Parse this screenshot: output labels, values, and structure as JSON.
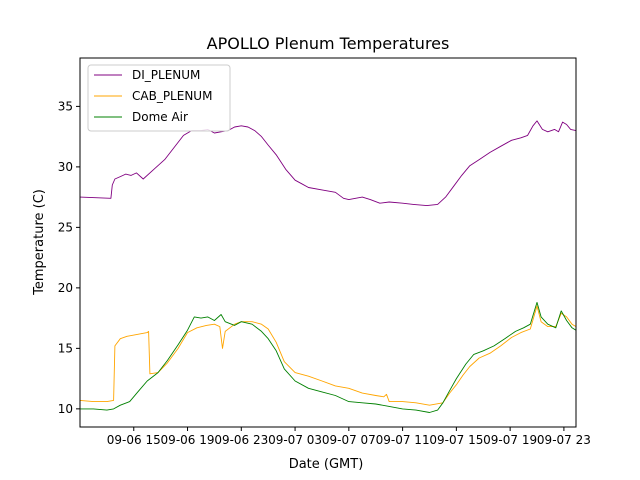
{
  "chart_data": {
    "type": "line",
    "title": "APOLLO Plenum Temperatures",
    "xlabel": "Date (GMT)",
    "ylabel": "Temperature (C)",
    "xlim": [
      11.0,
      47.9
    ],
    "ylim": [
      8.5,
      39.0
    ],
    "x_unit": "hours since 09-06 00:00 GMT",
    "x_ticks": [
      {
        "value": 15,
        "label": "09-06 15"
      },
      {
        "value": 19,
        "label": "09-06 19"
      },
      {
        "value": 23,
        "label": "09-06 23"
      },
      {
        "value": 27,
        "label": "09-07 03"
      },
      {
        "value": 31,
        "label": "09-07 07"
      },
      {
        "value": 35,
        "label": "09-07 11"
      },
      {
        "value": 39,
        "label": "09-07 15"
      },
      {
        "value": 43,
        "label": "09-07 19"
      },
      {
        "value": 47,
        "label": "09-07 23"
      }
    ],
    "y_ticks": [
      10,
      15,
      20,
      25,
      30,
      35
    ],
    "legend_position": "top-left",
    "series": [
      {
        "name": "DI_PLENUM",
        "color": "#800080",
        "points": [
          [
            11.0,
            27.5
          ],
          [
            13.3,
            27.4
          ],
          [
            13.4,
            28.5
          ],
          [
            13.6,
            29.0
          ],
          [
            14.0,
            29.2
          ],
          [
            14.4,
            29.4
          ],
          [
            14.8,
            29.3
          ],
          [
            15.2,
            29.5
          ],
          [
            15.7,
            29.0
          ],
          [
            16.5,
            29.8
          ],
          [
            17.3,
            30.6
          ],
          [
            18.0,
            31.6
          ],
          [
            18.7,
            32.6
          ],
          [
            19.3,
            33.0
          ],
          [
            20.0,
            33.0
          ],
          [
            20.5,
            33.1
          ],
          [
            21.0,
            32.8
          ],
          [
            21.5,
            32.9
          ],
          [
            22.0,
            33.0
          ],
          [
            22.5,
            33.3
          ],
          [
            23.0,
            33.4
          ],
          [
            23.5,
            33.3
          ],
          [
            24.0,
            33.0
          ],
          [
            24.5,
            32.5
          ],
          [
            25.0,
            31.8
          ],
          [
            25.6,
            31.0
          ],
          [
            26.3,
            29.8
          ],
          [
            27.0,
            28.9
          ],
          [
            27.5,
            28.6
          ],
          [
            28.0,
            28.3
          ],
          [
            29.0,
            28.1
          ],
          [
            30.0,
            27.9
          ],
          [
            30.6,
            27.4
          ],
          [
            31.0,
            27.3
          ],
          [
            32.0,
            27.5
          ],
          [
            32.6,
            27.3
          ],
          [
            33.3,
            27.0
          ],
          [
            34.0,
            27.1
          ],
          [
            35.0,
            27.0
          ],
          [
            35.8,
            26.9
          ],
          [
            36.8,
            26.8
          ],
          [
            37.6,
            26.9
          ],
          [
            38.2,
            27.5
          ],
          [
            38.8,
            28.4
          ],
          [
            39.4,
            29.3
          ],
          [
            40.0,
            30.1
          ],
          [
            40.7,
            30.6
          ],
          [
            41.5,
            31.2
          ],
          [
            42.3,
            31.7
          ],
          [
            43.1,
            32.2
          ],
          [
            43.8,
            32.4
          ],
          [
            44.3,
            32.6
          ],
          [
            44.7,
            33.4
          ],
          [
            45.0,
            33.8
          ],
          [
            45.4,
            33.1
          ],
          [
            45.8,
            32.9
          ],
          [
            46.3,
            33.1
          ],
          [
            46.6,
            32.9
          ],
          [
            46.9,
            33.7
          ],
          [
            47.2,
            33.5
          ],
          [
            47.5,
            33.1
          ],
          [
            47.9,
            33.0
          ]
        ]
      },
      {
        "name": "CAB_PLENUM",
        "color": "#ffa500",
        "points": [
          [
            11.0,
            10.7
          ],
          [
            12.0,
            10.6
          ],
          [
            13.0,
            10.6
          ],
          [
            13.5,
            10.7
          ],
          [
            13.6,
            15.2
          ],
          [
            14.0,
            15.8
          ],
          [
            14.5,
            16.0
          ],
          [
            15.0,
            16.1
          ],
          [
            15.5,
            16.2
          ],
          [
            16.0,
            16.3
          ],
          [
            16.1,
            16.4
          ],
          [
            16.2,
            12.9
          ],
          [
            16.8,
            13.0
          ],
          [
            17.5,
            13.8
          ],
          [
            18.3,
            15.0
          ],
          [
            19.0,
            16.3
          ],
          [
            19.7,
            16.7
          ],
          [
            20.4,
            16.9
          ],
          [
            21.0,
            17.0
          ],
          [
            21.4,
            16.8
          ],
          [
            21.6,
            15.0
          ],
          [
            21.8,
            16.4
          ],
          [
            22.5,
            17.0
          ],
          [
            23.0,
            17.2
          ],
          [
            23.8,
            17.2
          ],
          [
            24.5,
            17.0
          ],
          [
            25.0,
            16.6
          ],
          [
            25.6,
            15.5
          ],
          [
            26.2,
            13.9
          ],
          [
            27.0,
            13.0
          ],
          [
            28.0,
            12.7
          ],
          [
            29.0,
            12.3
          ],
          [
            30.0,
            11.9
          ],
          [
            31.0,
            11.7
          ],
          [
            32.0,
            11.3
          ],
          [
            33.0,
            11.1
          ],
          [
            33.6,
            11.0
          ],
          [
            33.8,
            11.2
          ],
          [
            34.0,
            10.6
          ],
          [
            35.0,
            10.6
          ],
          [
            36.0,
            10.5
          ],
          [
            37.0,
            10.3
          ],
          [
            38.0,
            10.5
          ],
          [
            38.5,
            11.3
          ],
          [
            39.0,
            12.0
          ],
          [
            39.5,
            12.8
          ],
          [
            40.0,
            13.5
          ],
          [
            40.7,
            14.2
          ],
          [
            41.5,
            14.6
          ],
          [
            42.3,
            15.2
          ],
          [
            43.1,
            15.9
          ],
          [
            43.8,
            16.3
          ],
          [
            44.5,
            16.6
          ],
          [
            45.0,
            18.5
          ],
          [
            45.3,
            17.2
          ],
          [
            45.8,
            16.8
          ],
          [
            46.4,
            16.8
          ],
          [
            46.8,
            17.9
          ],
          [
            47.2,
            17.6
          ],
          [
            47.6,
            17.0
          ],
          [
            47.9,
            16.8
          ]
        ]
      },
      {
        "name": "Dome Air",
        "color": "#008000",
        "points": [
          [
            11.0,
            10.0
          ],
          [
            12.0,
            10.0
          ],
          [
            13.0,
            9.9
          ],
          [
            13.5,
            10.0
          ],
          [
            14.0,
            10.3
          ],
          [
            14.7,
            10.6
          ],
          [
            15.3,
            11.4
          ],
          [
            16.0,
            12.3
          ],
          [
            16.8,
            13.0
          ],
          [
            17.5,
            14.0
          ],
          [
            18.3,
            15.3
          ],
          [
            19.0,
            16.5
          ],
          [
            19.5,
            17.6
          ],
          [
            20.0,
            17.5
          ],
          [
            20.5,
            17.6
          ],
          [
            21.0,
            17.3
          ],
          [
            21.5,
            17.8
          ],
          [
            21.8,
            17.2
          ],
          [
            22.5,
            16.9
          ],
          [
            23.0,
            17.2
          ],
          [
            23.8,
            17.0
          ],
          [
            24.5,
            16.4
          ],
          [
            25.0,
            15.8
          ],
          [
            25.6,
            14.8
          ],
          [
            26.2,
            13.3
          ],
          [
            27.0,
            12.3
          ],
          [
            28.0,
            11.7
          ],
          [
            29.0,
            11.4
          ],
          [
            30.0,
            11.1
          ],
          [
            31.0,
            10.6
          ],
          [
            32.0,
            10.5
          ],
          [
            33.0,
            10.4
          ],
          [
            34.0,
            10.2
          ],
          [
            35.0,
            10.0
          ],
          [
            36.0,
            9.9
          ],
          [
            37.0,
            9.7
          ],
          [
            37.6,
            9.9
          ],
          [
            38.0,
            10.5
          ],
          [
            38.5,
            11.5
          ],
          [
            39.0,
            12.5
          ],
          [
            39.7,
            13.7
          ],
          [
            40.3,
            14.5
          ],
          [
            41.0,
            14.8
          ],
          [
            41.8,
            15.2
          ],
          [
            42.6,
            15.8
          ],
          [
            43.4,
            16.4
          ],
          [
            44.0,
            16.7
          ],
          [
            44.5,
            17.0
          ],
          [
            45.0,
            18.8
          ],
          [
            45.3,
            17.6
          ],
          [
            45.8,
            17.0
          ],
          [
            46.4,
            16.7
          ],
          [
            46.8,
            18.1
          ],
          [
            47.2,
            17.3
          ],
          [
            47.6,
            16.7
          ],
          [
            47.9,
            16.5
          ]
        ]
      }
    ]
  }
}
